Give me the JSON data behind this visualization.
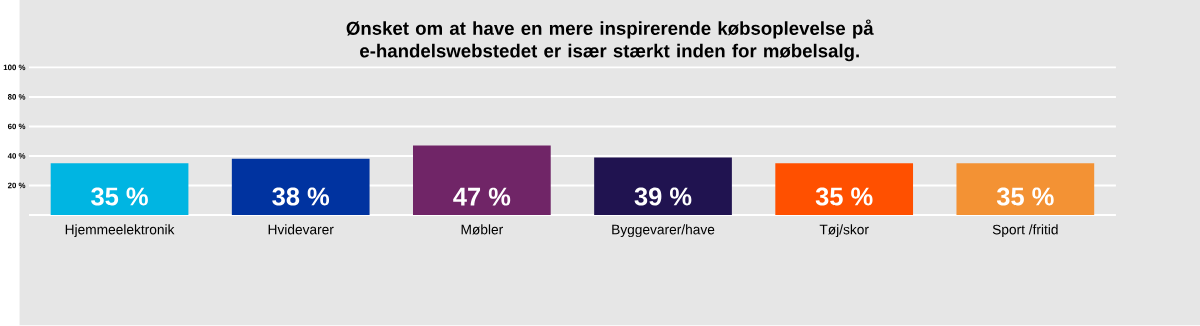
{
  "chart_data": {
    "type": "bar",
    "title": "Ønsket om at have en mere inspirerende købsoplevelse på e-handelswebstedet er især stærkt inden for møbelsalg.",
    "categories": [
      "Hjemmeelektronik",
      "Hvidevarer",
      "Møbler",
      "Byggevarer/have",
      "Tøj/skor",
      "Sport /fritid"
    ],
    "values": [
      35,
      38,
      47,
      39,
      35,
      35
    ],
    "value_labels": [
      "35 %",
      "38 %",
      "47 %",
      "39 %",
      "35 %",
      "35 %"
    ],
    "colors": [
      "#00b5e2",
      "#0033a0",
      "#702567",
      "#201350",
      "#ff5000",
      "#f39234"
    ],
    "ylim": [
      0,
      100
    ],
    "yticks": [
      {
        "value": 0,
        "label": null
      },
      {
        "value": 20,
        "label": "20 %"
      },
      {
        "value": 40,
        "label": "40 %"
      },
      {
        "value": 60,
        "label": "60 %"
      },
      {
        "value": 80,
        "label": "80 %"
      },
      {
        "value": 100,
        "label": "100 %"
      }
    ],
    "grid": "y"
  }
}
